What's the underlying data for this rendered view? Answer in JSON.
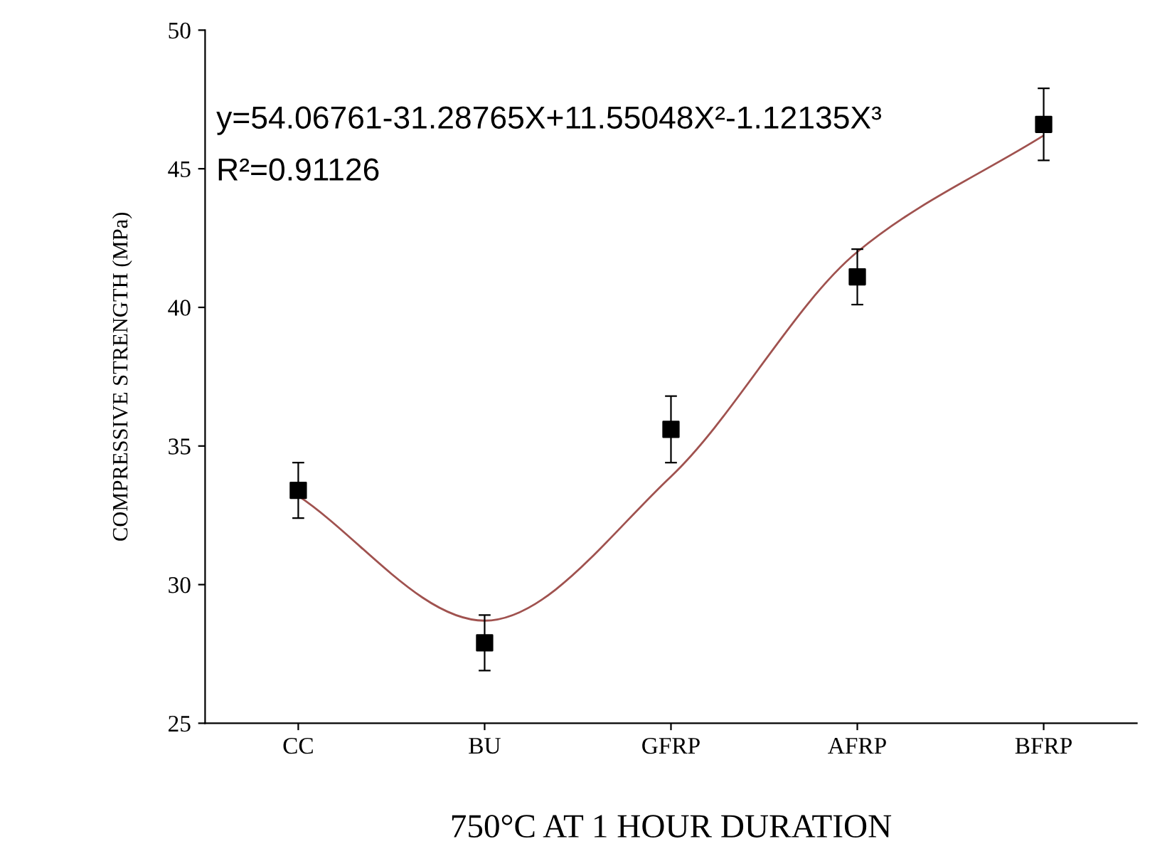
{
  "chart_data": {
    "type": "scatter",
    "xlabel": "750°C AT 1 HOUR DURATION",
    "ylabel": "COMPRESSIVE STRENGTH (MPa)",
    "categories": [
      "CC",
      "BU",
      "GFRP",
      "AFRP",
      "BFRP"
    ],
    "ylim": [
      25,
      50
    ],
    "yticks": [
      25,
      30,
      35,
      40,
      45,
      50
    ],
    "grid": false,
    "legend": false,
    "annotations": [
      "y=54.06761-31.28765X+11.55048X²-1.12135X³",
      "R²=0.91126"
    ],
    "series": [
      {
        "type": "line",
        "color": "#a0524f",
        "marker": "none",
        "line_style": "solid",
        "values": [
          33.2,
          28.7,
          33.9,
          42.0,
          46.2
        ]
      },
      {
        "color": "#000000",
        "marker": "square",
        "values": [
          33.4,
          27.9,
          35.6,
          41.1,
          46.6
        ],
        "errors": [
          1.0,
          1.0,
          1.2,
          1.0,
          1.3
        ]
      }
    ]
  }
}
